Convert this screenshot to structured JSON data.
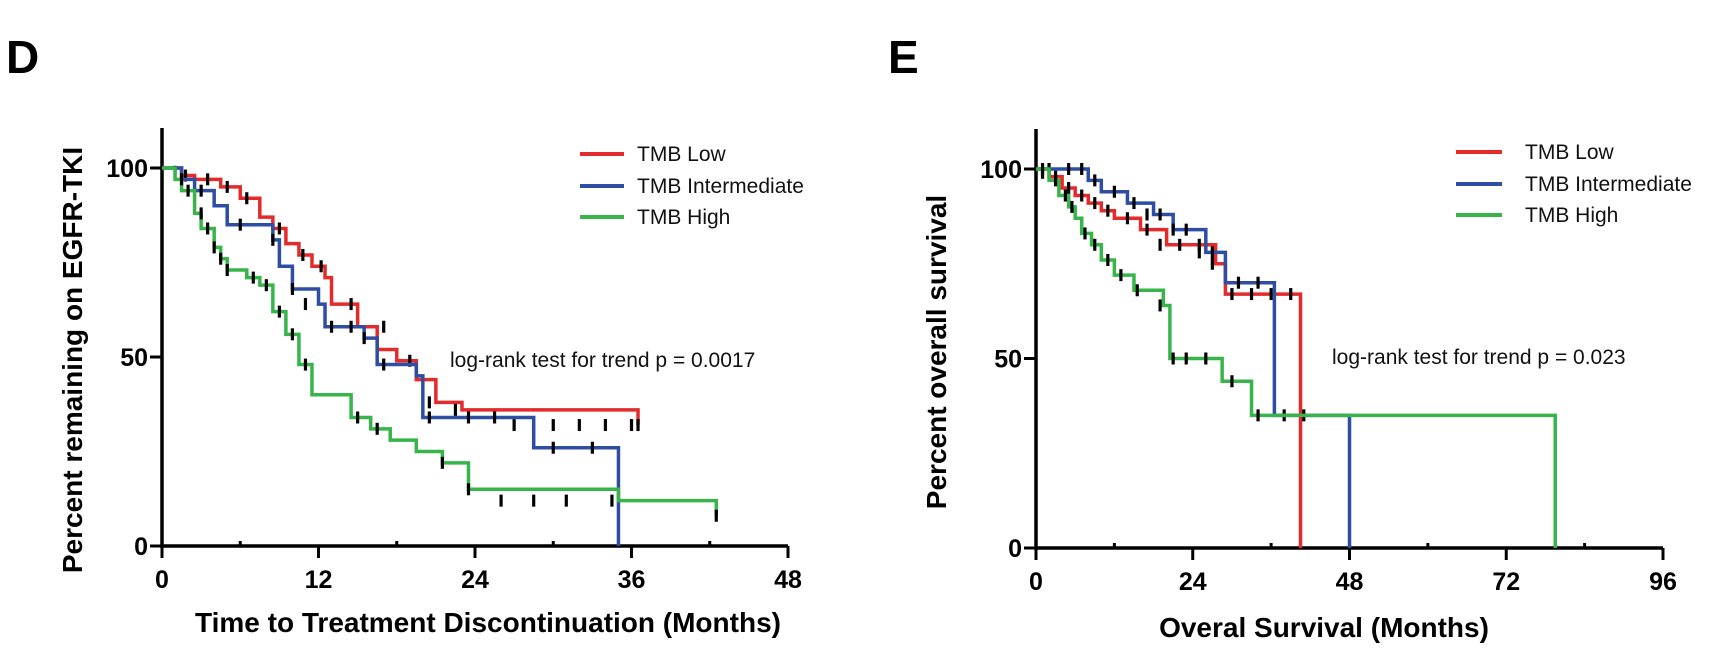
{
  "chart_data": [
    {
      "panel": "D",
      "type": "line",
      "step": true,
      "xlabel": "Time to Treatment Discontinuation (Months)",
      "ylabel": "Percent remaining on EGFR-TKI",
      "xlim": [
        0,
        48
      ],
      "ylim": [
        0,
        100
      ],
      "x_ticks": [
        0,
        12,
        24,
        36,
        48
      ],
      "y_ticks": [
        0,
        50,
        100
      ],
      "legend_position": "top-right",
      "annotation": "log-rank test for trend p = 0.0017",
      "series": [
        {
          "name": "TMB Low",
          "color": "#e32b2b",
          "x": [
            0,
            1.5,
            2.5,
            4.5,
            6.0,
            7.5,
            8.5,
            9.5,
            10.5,
            11.5,
            12.5,
            13.0,
            15.0,
            16.5,
            18.0,
            19.5,
            21.0,
            23.0,
            36.5
          ],
          "y": [
            100,
            98,
            97,
            95,
            92,
            87,
            84,
            80,
            77,
            74,
            71,
            64,
            58,
            52,
            49,
            44,
            38,
            36,
            32
          ],
          "censored_x": [
            1.8,
            3.5,
            5.0,
            6.5,
            9.0,
            10.8,
            12.2,
            14.5,
            17.0,
            19.0,
            20.5,
            22.5,
            27.0,
            30.0,
            32.0,
            34.0,
            36.0,
            36.5
          ],
          "censored_y": [
            98,
            97,
            95,
            92,
            84,
            77,
            74,
            64,
            58,
            49,
            38,
            36,
            32,
            32,
            32,
            32,
            32,
            32
          ]
        },
        {
          "name": "TMB Intermediate",
          "color": "#2d4ea2",
          "x": [
            0,
            1.5,
            2.5,
            4.0,
            5.0,
            8.0,
            8.5,
            9.0,
            10.0,
            12.0,
            12.5,
            15.5,
            16.5,
            19.5,
            20.0,
            28.5,
            34.5,
            35.0
          ],
          "y": [
            100,
            97,
            94,
            90,
            85,
            85,
            81,
            74,
            68,
            64,
            58,
            55,
            48,
            45,
            34,
            26,
            26,
            0
          ],
          "censored_x": [
            1.0,
            3.0,
            6.0,
            8.5,
            10.0,
            11.0,
            13.0,
            14.5,
            15.5,
            17.0,
            20.5,
            23.5,
            25.5,
            30.0,
            33.0
          ],
          "censored_y": [
            99,
            94,
            85,
            81,
            68,
            64,
            58,
            58,
            55,
            48,
            34,
            34,
            34,
            26,
            26
          ]
        },
        {
          "name": "TMB High",
          "color": "#38b54a",
          "x": [
            0,
            1.0,
            1.5,
            2.5,
            3.0,
            4.0,
            4.5,
            5.0,
            6.5,
            7.5,
            8.5,
            9.5,
            10.5,
            11.5,
            14.5,
            16.0,
            17.5,
            19.5,
            21.5,
            23.5,
            35.0,
            42.5
          ],
          "y": [
            100,
            97,
            94,
            88,
            84,
            79,
            76,
            73,
            71,
            69,
            62,
            56,
            48,
            40,
            34,
            31,
            28,
            25,
            22,
            15,
            12,
            8
          ],
          "censored_x": [
            1.5,
            2.0,
            3.0,
            3.5,
            4.0,
            4.5,
            5.0,
            7.0,
            8.0,
            9.0,
            10.0,
            11.0,
            15.0,
            16.5,
            21.5,
            23.5,
            26.0,
            28.5,
            31.0,
            34.5,
            42.5
          ],
          "censored_y": [
            97,
            94,
            88,
            84,
            79,
            76,
            73,
            71,
            69,
            62,
            56,
            48,
            34,
            31,
            22,
            15,
            12,
            12,
            12,
            12,
            8
          ]
        }
      ]
    },
    {
      "panel": "E",
      "type": "line",
      "step": true,
      "xlabel": "Overal Survival (Months)",
      "ylabel": "Percent overall survival",
      "xlim": [
        0,
        96
      ],
      "ylim": [
        0,
        100
      ],
      "x_ticks": [
        0,
        24,
        48,
        72,
        96
      ],
      "y_ticks": [
        0,
        50,
        100
      ],
      "legend_position": "top-right",
      "annotation": "log-rank test for trend p = 0.023",
      "series": [
        {
          "name": "TMB Low",
          "color": "#e32b2b",
          "x": [
            0,
            2.0,
            4.0,
            6.0,
            8.0,
            10.0,
            12.0,
            16.0,
            20.0,
            24.0,
            27.5,
            29.0,
            40.5
          ],
          "y": [
            100,
            98,
            95,
            93,
            91,
            89,
            87,
            84,
            80,
            80,
            75,
            67,
            0
          ],
          "censored_x": [
            1.0,
            3.0,
            5.0,
            7.0,
            9.0,
            11.0,
            14.0,
            17.0,
            19.0,
            22.0,
            25.0,
            27.0,
            30.0,
            33.0,
            36.0,
            39.0
          ],
          "censored_y": [
            99,
            98,
            95,
            93,
            91,
            89,
            87,
            84,
            80,
            80,
            80,
            75,
            67,
            67,
            67,
            67
          ]
        },
        {
          "name": "TMB Intermediate",
          "color": "#2d4ea2",
          "x": [
            0,
            4.0,
            8.0,
            10.0,
            14.0,
            18.0,
            21.0,
            26.0,
            29.0,
            36.5,
            48.0
          ],
          "y": [
            100,
            100,
            97,
            94,
            91,
            88,
            84,
            78,
            70,
            35,
            0
          ],
          "censored_x": [
            2.0,
            5.0,
            7.0,
            9.0,
            12.0,
            15.0,
            17.0,
            19.0,
            21.0,
            23.0,
            25.0,
            27.0,
            31.0,
            34.0,
            38.0,
            41.0
          ],
          "censored_y": [
            100,
            100,
            100,
            97,
            94,
            91,
            88,
            88,
            84,
            84,
            78,
            78,
            70,
            70,
            35,
            35
          ]
        },
        {
          "name": "TMB High",
          "color": "#38b54a",
          "x": [
            0,
            2.0,
            3.5,
            5.0,
            6.0,
            7.0,
            8.5,
            10.0,
            12.0,
            15.0,
            19.5,
            20.5,
            28.5,
            33.0,
            79.5
          ],
          "y": [
            100,
            97,
            93,
            90,
            87,
            83,
            80,
            76,
            72,
            68,
            64,
            50,
            44,
            35,
            0
          ],
          "censored_x": [
            1.0,
            3.0,
            4.5,
            5.5,
            7.5,
            9.0,
            11.0,
            13.0,
            15.5,
            19.0,
            21.0,
            23.0,
            26.0,
            30.0,
            34.0
          ],
          "censored_y": [
            100,
            97,
            93,
            90,
            83,
            80,
            76,
            72,
            68,
            64,
            50,
            50,
            50,
            44,
            35
          ]
        }
      ]
    }
  ]
}
